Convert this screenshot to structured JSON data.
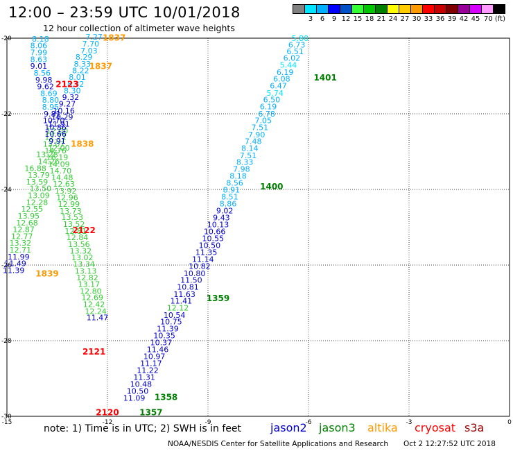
{
  "header": {
    "title": "12:00 – 23:59 UTC 10/01/2018",
    "subtitle": "12 hour collection of altimeter wave heights"
  },
  "colorbar": {
    "colors": [
      "#808080",
      "#00e5ff",
      "#00b0ff",
      "#0000ff",
      "#0050c8",
      "#33ff33",
      "#00c800",
      "#008000",
      "#ffff00",
      "#ffcc00",
      "#ff9900",
      "#ff0000",
      "#c80000",
      "#800000",
      "#990099",
      "#d500ff",
      "#ff99ff",
      "#000000"
    ],
    "labels": [
      "3",
      "6",
      "9",
      "12",
      "15",
      "18",
      "21",
      "24",
      "27",
      "30",
      "33",
      "36",
      "39",
      "42",
      "45",
      "70 (ft)"
    ]
  },
  "note": "note:  1) Time is in UTC;  2) SWH is in feet",
  "legend": [
    {
      "name": "jason2",
      "color": "#0000cc"
    },
    {
      "name": "jason3",
      "color": "#008000"
    },
    {
      "name": "altika",
      "color": "#ff9900"
    },
    {
      "name": "cryosat",
      "color": "#ff0000"
    },
    {
      "name": "s3a",
      "color": "#990000"
    }
  ],
  "footer": {
    "credit": "NOAA/NESDIS Center for Satellite Applications and Research",
    "timestamp": "Oct  2 12:27:52 UTC 2018"
  },
  "chart_data": {
    "type": "scatter",
    "xlim": [
      -15,
      0
    ],
    "ylim": [
      -30,
      -20
    ],
    "xticks": [
      "-15",
      "-12",
      "-9",
      "-6",
      "-3",
      "0"
    ],
    "yticks": [
      "-20",
      "-22",
      "-24",
      "-26",
      "-28",
      "-30"
    ],
    "grid": true,
    "time_labels": [
      {
        "text": "1837",
        "x": -11.8,
        "y": -20.06,
        "color": "#ff9900"
      },
      {
        "text": "1837",
        "x": -12.2,
        "y": -20.82,
        "color": "#ff9900"
      },
      {
        "text": "2123",
        "x": -13.2,
        "y": -21.29,
        "color": "#ff0000"
      },
      {
        "text": "1838",
        "x": -12.75,
        "y": -22.87,
        "color": "#ff9900"
      },
      {
        "text": "2122",
        "x": -12.7,
        "y": -25.16,
        "color": "#ff0000"
      },
      {
        "text": "1839",
        "x": -13.8,
        "y": -26.3,
        "color": "#ff9900"
      },
      {
        "text": "2121",
        "x": -12.4,
        "y": -28.37,
        "color": "#ff0000"
      },
      {
        "text": "2120",
        "x": -12.0,
        "y": -29.97,
        "color": "#ff0000"
      },
      {
        "text": "1401",
        "x": -5.5,
        "y": -21.12,
        "color": "#008000"
      },
      {
        "text": "1400",
        "x": -7.1,
        "y": -24.0,
        "color": "#008000"
      },
      {
        "text": "1359",
        "x": -8.7,
        "y": -26.95,
        "color": "#008000"
      },
      {
        "text": "1358",
        "x": -10.25,
        "y": -29.57,
        "color": "#008000"
      },
      {
        "text": "1357",
        "x": -10.7,
        "y": -29.97,
        "color": "#008000"
      }
    ],
    "series": [
      {
        "track": "east",
        "points": [
          {
            "x": -6.25,
            "y": -20.07,
            "v": "5.80"
          },
          {
            "x": -6.35,
            "y": -20.25,
            "v": "6.73"
          },
          {
            "x": -6.4,
            "y": -20.42,
            "v": "6.51"
          },
          {
            "x": -6.5,
            "y": -20.6,
            "v": "6.02"
          },
          {
            "x": -6.6,
            "y": -20.78,
            "v": "5.44"
          },
          {
            "x": -6.7,
            "y": -20.97,
            "v": "6.19"
          },
          {
            "x": -6.8,
            "y": -21.15,
            "v": "6.08"
          },
          {
            "x": -6.9,
            "y": -21.33,
            "v": "6.47"
          },
          {
            "x": -7.0,
            "y": -21.52,
            "v": "5.74"
          },
          {
            "x": -7.1,
            "y": -21.7,
            "v": "6.50"
          },
          {
            "x": -7.2,
            "y": -21.88,
            "v": "6.19"
          },
          {
            "x": -7.25,
            "y": -22.07,
            "v": "6.78"
          },
          {
            "x": -7.35,
            "y": -22.25,
            "v": "7.05"
          },
          {
            "x": -7.45,
            "y": -22.43,
            "v": "7.51"
          },
          {
            "x": -7.55,
            "y": -22.62,
            "v": "7.90"
          },
          {
            "x": -7.65,
            "y": -22.8,
            "v": "7.48"
          },
          {
            "x": -7.75,
            "y": -22.98,
            "v": "8.14"
          },
          {
            "x": -7.8,
            "y": -23.17,
            "v": "7.51"
          },
          {
            "x": -7.9,
            "y": -23.35,
            "v": "8.33"
          },
          {
            "x": -8.0,
            "y": -23.53,
            "v": "7.98"
          },
          {
            "x": -8.1,
            "y": -23.72,
            "v": "8.18"
          },
          {
            "x": -8.2,
            "y": -23.9,
            "v": "8.56"
          },
          {
            "x": -8.3,
            "y": -24.08,
            "v": "8.91"
          },
          {
            "x": -8.35,
            "y": -24.27,
            "v": "8.51"
          },
          {
            "x": -8.4,
            "y": -24.45,
            "v": "8.86"
          },
          {
            "x": -8.5,
            "y": -24.63,
            "v": "9.02"
          },
          {
            "x": -8.6,
            "y": -24.82,
            "v": "9.43"
          },
          {
            "x": -8.7,
            "y": -25.0,
            "v": "10.13"
          },
          {
            "x": -8.8,
            "y": -25.18,
            "v": "10.66"
          },
          {
            "x": -8.85,
            "y": -25.37,
            "v": "10.55"
          },
          {
            "x": -8.95,
            "y": -25.55,
            "v": "10.50"
          },
          {
            "x": -9.05,
            "y": -25.73,
            "v": "11.35"
          },
          {
            "x": -9.15,
            "y": -25.92,
            "v": "11.14"
          },
          {
            "x": -9.25,
            "y": -26.1,
            "v": "10.82"
          },
          {
            "x": -9.4,
            "y": -26.29,
            "v": "10.80"
          },
          {
            "x": -9.5,
            "y": -26.47,
            "v": "11.50"
          },
          {
            "x": -9.6,
            "y": -26.65,
            "v": "10.81"
          },
          {
            "x": -9.7,
            "y": -26.84,
            "v": "11.63"
          },
          {
            "x": -9.8,
            "y": -27.02,
            "v": "11.41"
          },
          {
            "x": -9.9,
            "y": -27.2,
            "v": "12.12"
          },
          {
            "x": -10.0,
            "y": -27.39,
            "v": "10.54"
          },
          {
            "x": -10.1,
            "y": -27.57,
            "v": "10.75"
          },
          {
            "x": -10.2,
            "y": -27.75,
            "v": "11.39"
          },
          {
            "x": -10.3,
            "y": -27.94,
            "v": "10.35"
          },
          {
            "x": -10.4,
            "y": -28.12,
            "v": "10.37"
          },
          {
            "x": -10.5,
            "y": -28.3,
            "v": "11.46"
          },
          {
            "x": -10.6,
            "y": -28.49,
            "v": "10.97"
          },
          {
            "x": -10.7,
            "y": -28.67,
            "v": "11.17"
          },
          {
            "x": -10.8,
            "y": -28.85,
            "v": "11.22"
          },
          {
            "x": -10.9,
            "y": -29.04,
            "v": "11.31"
          },
          {
            "x": -11.0,
            "y": -29.22,
            "v": "10.48"
          },
          {
            "x": -11.1,
            "y": -29.4,
            "v": "10.50"
          },
          {
            "x": -11.2,
            "y": -29.59,
            "v": "11.09"
          }
        ]
      },
      {
        "track": "west",
        "points": [
          {
            "x": -12.4,
            "y": -20.04,
            "v": "7.27"
          },
          {
            "x": -12.5,
            "y": -20.22,
            "v": "7.70"
          },
          {
            "x": -12.55,
            "y": -20.4,
            "v": "7.03"
          },
          {
            "x": -12.7,
            "y": -20.57,
            "v": "8.29"
          },
          {
            "x": -12.75,
            "y": -20.75,
            "v": "8.33"
          },
          {
            "x": -12.8,
            "y": -20.93,
            "v": "8.22"
          },
          {
            "x": -12.9,
            "y": -21.1,
            "v": "8.01"
          },
          {
            "x": -12.95,
            "y": -21.28,
            "v": "8.32"
          },
          {
            "x": -13.05,
            "y": -21.46,
            "v": "8.30"
          },
          {
            "x": -13.1,
            "y": -21.63,
            "v": "9.32"
          },
          {
            "x": -13.2,
            "y": -21.81,
            "v": "9.27"
          },
          {
            "x": -13.3,
            "y": -21.99,
            "v": "10.16"
          },
          {
            "x": -13.35,
            "y": -22.16,
            "v": "10.29"
          },
          {
            "x": -13.45,
            "y": -22.34,
            "v": "11.91"
          },
          {
            "x": -13.5,
            "y": -22.52,
            "v": "12.00"
          },
          {
            "x": -13.55,
            "y": -22.69,
            "v": "12.71"
          },
          {
            "x": -13.6,
            "y": -22.87,
            "v": "13.07"
          },
          {
            "x": -13.55,
            "y": -23.05,
            "v": "14.76"
          },
          {
            "x": -13.5,
            "y": -23.22,
            "v": "16.19"
          },
          {
            "x": -13.45,
            "y": -23.4,
            "v": "14.09"
          },
          {
            "x": -13.4,
            "y": -23.58,
            "v": "14.70"
          },
          {
            "x": -13.35,
            "y": -23.75,
            "v": "14.48"
          },
          {
            "x": -13.3,
            "y": -23.93,
            "v": "12.63"
          },
          {
            "x": -13.25,
            "y": -24.11,
            "v": "13.92"
          },
          {
            "x": -13.2,
            "y": -24.28,
            "v": "12.96"
          },
          {
            "x": -13.15,
            "y": -24.46,
            "v": "12.99"
          },
          {
            "x": -13.1,
            "y": -24.64,
            "v": "13.73"
          },
          {
            "x": -13.05,
            "y": -24.81,
            "v": "13.53"
          },
          {
            "x": -13.0,
            "y": -24.99,
            "v": "13.52"
          },
          {
            "x": -12.95,
            "y": -25.17,
            "v": "12.81"
          },
          {
            "x": -12.9,
            "y": -25.34,
            "v": "12.84"
          },
          {
            "x": -12.85,
            "y": -25.52,
            "v": "13.56"
          },
          {
            "x": -12.8,
            "y": -25.7,
            "v": "13.32"
          },
          {
            "x": -12.75,
            "y": -25.87,
            "v": "13.02"
          },
          {
            "x": -12.7,
            "y": -26.05,
            "v": "13.34"
          },
          {
            "x": -12.65,
            "y": -26.23,
            "v": "13.13"
          },
          {
            "x": -12.6,
            "y": -26.4,
            "v": "12.82"
          },
          {
            "x": -12.55,
            "y": -26.58,
            "v": "13.17"
          },
          {
            "x": -12.5,
            "y": -26.76,
            "v": "12.80"
          },
          {
            "x": -12.45,
            "y": -26.93,
            "v": "12.69"
          },
          {
            "x": -12.4,
            "y": -27.11,
            "v": "12.42"
          },
          {
            "x": -12.35,
            "y": -27.29,
            "v": "12.24"
          },
          {
            "x": -12.3,
            "y": -27.46,
            "v": "11.47"
          }
        ]
      },
      {
        "track": "far-west",
        "points": [
          {
            "x": -14.0,
            "y": -20.09,
            "v": "8.18"
          },
          {
            "x": -14.05,
            "y": -20.27,
            "v": "8.06"
          },
          {
            "x": -14.05,
            "y": -20.45,
            "v": "7.99"
          },
          {
            "x": -14.05,
            "y": -20.63,
            "v": "8.63"
          },
          {
            "x": -14.05,
            "y": -20.81,
            "v": "9.01"
          },
          {
            "x": -13.95,
            "y": -20.99,
            "v": "8.56"
          },
          {
            "x": -13.9,
            "y": -21.17,
            "v": "9.98"
          },
          {
            "x": -13.85,
            "y": -21.35,
            "v": "9.62"
          },
          {
            "x": -13.75,
            "y": -21.53,
            "v": "8.69"
          },
          {
            "x": -13.7,
            "y": -21.71,
            "v": "8.80"
          },
          {
            "x": -13.7,
            "y": -21.89,
            "v": "8.95"
          },
          {
            "x": -13.65,
            "y": -22.07,
            "v": "9.81"
          },
          {
            "x": -13.6,
            "y": -22.25,
            "v": "10.70"
          },
          {
            "x": -13.55,
            "y": -22.43,
            "v": "10.86"
          },
          {
            "x": -13.55,
            "y": -22.61,
            "v": "10.66"
          },
          {
            "x": -13.5,
            "y": -22.79,
            "v": "9.91"
          },
          {
            "x": -13.45,
            "y": -22.97,
            "v": "12.00"
          },
          {
            "x": -13.8,
            "y": -23.15,
            "v": "13.28"
          },
          {
            "x": -13.75,
            "y": -23.33,
            "v": "14.26"
          },
          {
            "x": -14.15,
            "y": -23.51,
            "v": "16.88"
          },
          {
            "x": -14.05,
            "y": -23.69,
            "v": "13.79"
          },
          {
            "x": -14.1,
            "y": -23.87,
            "v": "13.59"
          },
          {
            "x": -14.0,
            "y": -24.05,
            "v": "13.50"
          },
          {
            "x": -14.05,
            "y": -24.23,
            "v": "13.09"
          },
          {
            "x": -14.1,
            "y": -24.41,
            "v": "12.28"
          },
          {
            "x": -14.25,
            "y": -24.59,
            "v": "12.55"
          },
          {
            "x": -14.35,
            "y": -24.77,
            "v": "13.95"
          },
          {
            "x": -14.4,
            "y": -24.95,
            "v": "12.68"
          },
          {
            "x": -14.5,
            "y": -25.13,
            "v": "12.87"
          },
          {
            "x": -14.55,
            "y": -25.31,
            "v": "12.77"
          },
          {
            "x": -14.6,
            "y": -25.49,
            "v": "13.32"
          },
          {
            "x": -14.6,
            "y": -25.67,
            "v": "12.71"
          },
          {
            "x": -14.65,
            "y": -25.85,
            "v": "11.99"
          },
          {
            "x": -14.75,
            "y": -26.03,
            "v": "11.49"
          },
          {
            "x": -14.8,
            "y": -26.21,
            "v": "11.39"
          }
        ]
      }
    ]
  }
}
